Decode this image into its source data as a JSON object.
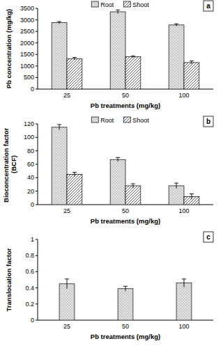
{
  "chart_data": [
    {
      "type": "bar",
      "title": "a",
      "x_label": "Pb treatments (mg/kg)",
      "y_label": "Pb concentration (mg/kg)",
      "categories": [
        "25",
        "50",
        "100"
      ],
      "series": [
        {
          "name": "Root",
          "color": "#e6e6e6",
          "values": [
            2880,
            3350,
            2780
          ],
          "errors": [
            50,
            80,
            50
          ]
        },
        {
          "name": "Shoot",
          "color": "#ffffff",
          "values": [
            1320,
            1400,
            1150
          ],
          "errors": [
            50,
            40,
            70
          ]
        }
      ],
      "ylim": [
        0,
        3500
      ],
      "yticks": [
        0,
        500,
        1000,
        1500,
        2000,
        2500,
        3000,
        3500
      ],
      "legend": "top"
    },
    {
      "type": "bar",
      "title": "b",
      "x_label": "Pb treatments (mg/kg)",
      "y_label": "Bioconcentration factor (BCF)",
      "categories": [
        "25",
        "50",
        "100"
      ],
      "series": [
        {
          "name": "Root",
          "color": "#e6e6e6",
          "values": [
            115,
            67,
            28
          ],
          "errors": [
            4,
            3,
            4
          ]
        },
        {
          "name": "Shoot",
          "color": "#ffffff",
          "values": [
            45,
            28,
            12
          ],
          "errors": [
            3,
            3,
            4
          ]
        }
      ],
      "ylim": [
        0,
        120
      ],
      "yticks": [
        0,
        20,
        40,
        60,
        80,
        100,
        120
      ],
      "legend": "top"
    },
    {
      "type": "bar",
      "title": "c",
      "x_label": "Pb treatments (mg/kg)",
      "y_label": "Translocation factor",
      "categories": [
        "25",
        "50",
        "100"
      ],
      "values": [
        0.45,
        0.39,
        0.46
      ],
      "errors": [
        0.06,
        0.03,
        0.05
      ],
      "color": "#e6e6e6",
      "ylim": [
        0,
        1
      ],
      "yticks": [
        0,
        0.2,
        0.4,
        0.6,
        0.8,
        1
      ]
    }
  ]
}
